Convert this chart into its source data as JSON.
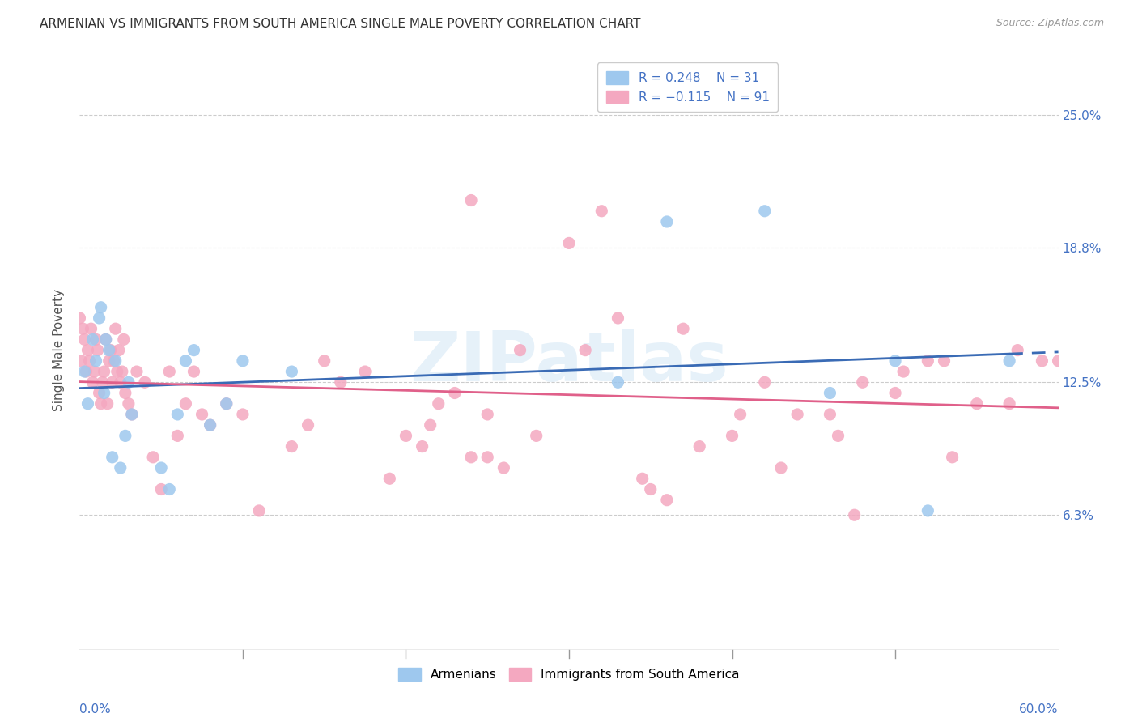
{
  "title": "ARMENIAN VS IMMIGRANTS FROM SOUTH AMERICA SINGLE MALE POVERTY CORRELATION CHART",
  "source": "Source: ZipAtlas.com",
  "ylabel": "Single Male Poverty",
  "ytick_labels": [
    "6.3%",
    "12.5%",
    "18.8%",
    "25.0%"
  ],
  "ytick_values": [
    6.3,
    12.5,
    18.8,
    25.0
  ],
  "r_armenian": 0.248,
  "n_armenian": 31,
  "r_immigrant": -0.115,
  "n_immigrant": 91,
  "color_armenian": "#9EC8EE",
  "color_immigrant": "#F4A8C0",
  "color_armenian_line": "#3A6BB5",
  "color_immigrant_line": "#E0608A",
  "background_color": "#FFFFFF",
  "watermark": "ZIPatlas",
  "xmin": 0.0,
  "xmax": 60.0,
  "ymin": 0.0,
  "ymax": 28.0,
  "armenian_x": [
    0.3,
    0.5,
    0.8,
    1.0,
    1.2,
    1.3,
    1.5,
    1.6,
    1.8,
    2.0,
    2.2,
    2.5,
    2.8,
    3.0,
    3.2,
    5.0,
    5.5,
    6.0,
    6.5,
    7.0,
    8.0,
    9.0,
    10.0,
    13.0,
    33.0,
    36.0,
    42.0,
    46.0,
    50.0,
    52.0,
    57.0
  ],
  "armenian_y": [
    13.0,
    11.5,
    14.5,
    13.5,
    15.5,
    16.0,
    12.0,
    14.5,
    14.0,
    9.0,
    13.5,
    8.5,
    10.0,
    12.5,
    11.0,
    8.5,
    7.5,
    11.0,
    13.5,
    14.0,
    10.5,
    11.5,
    13.5,
    13.0,
    12.5,
    20.0,
    20.5,
    12.0,
    13.5,
    6.5,
    13.5
  ],
  "immigrant_x": [
    0.0,
    0.1,
    0.2,
    0.3,
    0.4,
    0.5,
    0.6,
    0.7,
    0.8,
    0.9,
    1.0,
    1.1,
    1.2,
    1.3,
    1.4,
    1.5,
    1.6,
    1.7,
    1.8,
    1.9,
    2.0,
    2.1,
    2.2,
    2.3,
    2.4,
    2.5,
    2.6,
    2.7,
    2.8,
    3.0,
    3.2,
    3.5,
    4.0,
    4.5,
    5.0,
    5.5,
    6.0,
    6.5,
    7.0,
    7.5,
    8.0,
    9.0,
    10.0,
    11.0,
    13.0,
    14.0,
    15.0,
    16.0,
    17.5,
    19.0,
    20.0,
    21.0,
    22.0,
    23.0,
    24.0,
    25.0,
    26.0,
    27.0,
    28.0,
    30.0,
    31.0,
    32.0,
    33.0,
    34.5,
    36.0,
    37.0,
    38.0,
    40.0,
    42.0,
    43.0,
    44.0,
    46.0,
    48.0,
    50.0,
    52.0,
    53.0,
    55.0,
    57.0,
    59.0,
    60.0,
    25.0,
    21.5,
    35.0,
    40.5,
    46.5,
    47.5,
    50.5,
    53.5,
    57.5,
    60.5,
    24.0
  ],
  "immigrant_y": [
    15.5,
    13.5,
    15.0,
    14.5,
    13.0,
    14.0,
    13.5,
    15.0,
    12.5,
    13.0,
    14.5,
    14.0,
    12.0,
    11.5,
    12.5,
    13.0,
    14.5,
    11.5,
    13.5,
    14.0,
    12.5,
    13.5,
    15.0,
    13.0,
    14.0,
    12.5,
    13.0,
    14.5,
    12.0,
    11.5,
    11.0,
    13.0,
    12.5,
    9.0,
    7.5,
    13.0,
    10.0,
    11.5,
    13.0,
    11.0,
    10.5,
    11.5,
    11.0,
    6.5,
    9.5,
    10.5,
    13.5,
    12.5,
    13.0,
    8.0,
    10.0,
    9.5,
    11.5,
    12.0,
    9.0,
    11.0,
    8.5,
    14.0,
    10.0,
    19.0,
    14.0,
    20.5,
    15.5,
    8.0,
    7.0,
    15.0,
    9.5,
    10.0,
    12.5,
    8.5,
    11.0,
    11.0,
    12.5,
    12.0,
    13.5,
    13.5,
    11.5,
    11.5,
    13.5,
    13.5,
    9.0,
    10.5,
    7.5,
    11.0,
    10.0,
    6.3,
    13.0,
    9.0,
    14.0,
    13.0,
    21.0
  ]
}
